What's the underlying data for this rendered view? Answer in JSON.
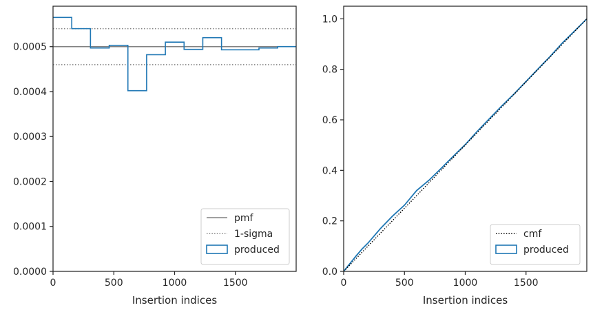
{
  "chart_data": [
    {
      "type": "line",
      "xlabel": "Insertion indices",
      "ylabel": "",
      "xlim": [
        0,
        2000
      ],
      "ylim": [
        0,
        0.00059
      ],
      "xticks": [
        0,
        500,
        1000,
        1500
      ],
      "yticks": [
        0.0,
        0.0001,
        0.0002,
        0.0003,
        0.0004,
        0.0005
      ],
      "ytick_labels": [
        "0.0000",
        "0.0001",
        "0.0002",
        "0.0003",
        "0.0004",
        "0.0005"
      ],
      "legend_position": "lower-right",
      "series": [
        {
          "name": "pmf",
          "kind": "hline",
          "y": 0.0005,
          "color": "#808080",
          "style": "solid"
        },
        {
          "name": "1-sigma",
          "kind": "hlines",
          "y": [
            0.00054,
            0.00046
          ],
          "color": "#808080",
          "style": "dotted"
        },
        {
          "name": "produced",
          "kind": "step-histogram",
          "color": "#1f77b4",
          "bin_edges": [
            0,
            154,
            308,
            462,
            616,
            770,
            924,
            1078,
            1232,
            1386,
            1540,
            1694,
            1848,
            2000
          ],
          "values": [
            0.000565,
            0.00054,
            0.000497,
            0.000503,
            0.000402,
            0.000482,
            0.00051,
            0.000494,
            0.00052,
            0.000493,
            0.000493,
            0.000497,
            0.0005
          ]
        }
      ]
    },
    {
      "type": "line",
      "xlabel": "Insertion indices",
      "ylabel": "",
      "xlim": [
        0,
        2000
      ],
      "ylim": [
        0,
        1.05
      ],
      "xticks": [
        0,
        500,
        1000,
        1500
      ],
      "yticks": [
        0.0,
        0.2,
        0.4,
        0.6,
        0.8,
        1.0
      ],
      "ytick_labels": [
        "0.0",
        "0.2",
        "0.4",
        "0.6",
        "0.8",
        "1.0"
      ],
      "legend_position": "lower-right",
      "series": [
        {
          "name": "cmf",
          "color": "#000000",
          "style": "dotted",
          "x": [
            0,
            2000
          ],
          "y": [
            0,
            1.0
          ]
        },
        {
          "name": "produced",
          "color": "#1f77b4",
          "style": "solid",
          "x": [
            0,
            50,
            100,
            150,
            200,
            300,
            400,
            500,
            600,
            700,
            800,
            900,
            1000,
            1100,
            1200,
            1300,
            1400,
            1500,
            1600,
            1700,
            1800,
            1900,
            2000
          ],
          "y": [
            0,
            0.03,
            0.06,
            0.088,
            0.112,
            0.168,
            0.218,
            0.262,
            0.32,
            0.36,
            0.407,
            0.455,
            0.502,
            0.555,
            0.605,
            0.655,
            0.702,
            0.752,
            0.802,
            0.852,
            0.905,
            0.952,
            1.0
          ]
        }
      ]
    }
  ]
}
